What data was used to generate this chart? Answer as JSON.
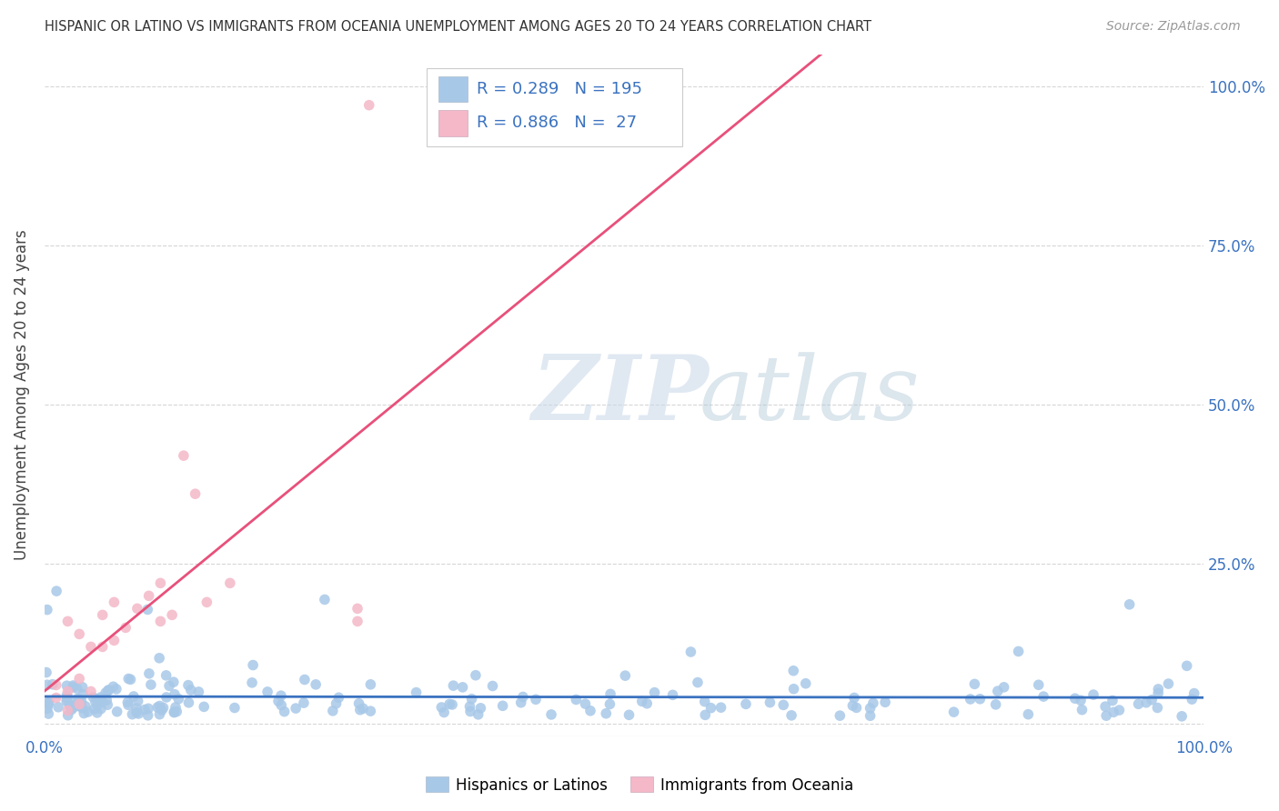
{
  "title": "HISPANIC OR LATINO VS IMMIGRANTS FROM OCEANIA UNEMPLOYMENT AMONG AGES 20 TO 24 YEARS CORRELATION CHART",
  "source": "Source: ZipAtlas.com",
  "ylabel": "Unemployment Among Ages 20 to 24 years",
  "blue_R": 0.289,
  "blue_N": 195,
  "pink_R": 0.886,
  "pink_N": 27,
  "blue_scatter_color": "#a8c8e8",
  "pink_scatter_color": "#f4b8c8",
  "blue_line_color": "#3a72c0",
  "pink_line_color": "#e8507a",
  "legend_blue_label": "Hispanics or Latinos",
  "legend_pink_label": "Immigrants from Oceania",
  "watermark_zip": "ZIP",
  "watermark_atlas": "atlas",
  "background_color": "#ffffff",
  "xlim": [
    0,
    1
  ],
  "ylim": [
    -0.02,
    1.05
  ],
  "text_color": "#3a72c0",
  "title_color": "#333333",
  "source_color": "#999999",
  "grid_color": "#cccccc",
  "ylabel_color": "#444444"
}
